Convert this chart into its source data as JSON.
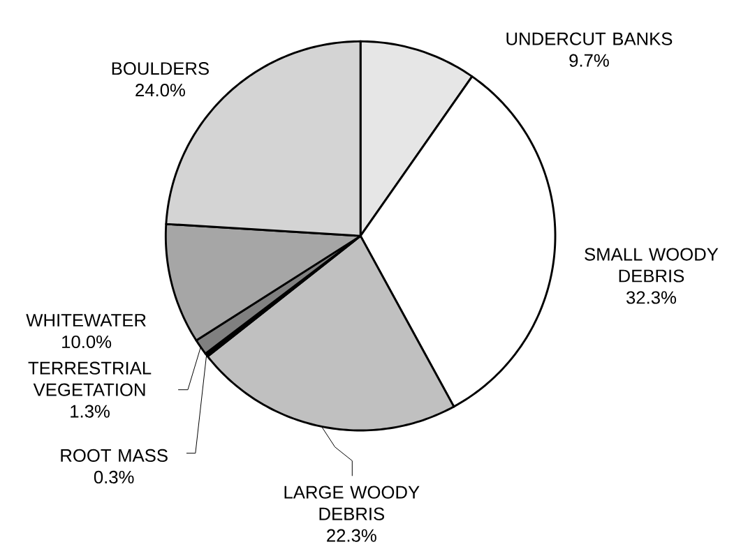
{
  "chart_data": {
    "type": "pie",
    "categories": [
      "UNDERCUT BANKS",
      "SMALL WOODY DEBRIS",
      "LARGE WOODY DEBRIS",
      "ROOT MASS",
      "TERRESTRIAL VEGETATION",
      "WHITEWATER",
      "BOULDERS"
    ],
    "values": [
      9.7,
      32.3,
      22.3,
      0.3,
      1.3,
      10.0,
      24.0
    ],
    "value_labels": [
      "9.7%",
      "32.3%",
      "22.3%",
      "0.3%",
      "1.3%",
      "10.0%",
      "24.0%"
    ],
    "colors": [
      "#e6e6e6",
      "#ffffff",
      "#c0c0c0",
      "#000000",
      "#808080",
      "#a6a6a6",
      "#d4d4d4"
    ]
  }
}
